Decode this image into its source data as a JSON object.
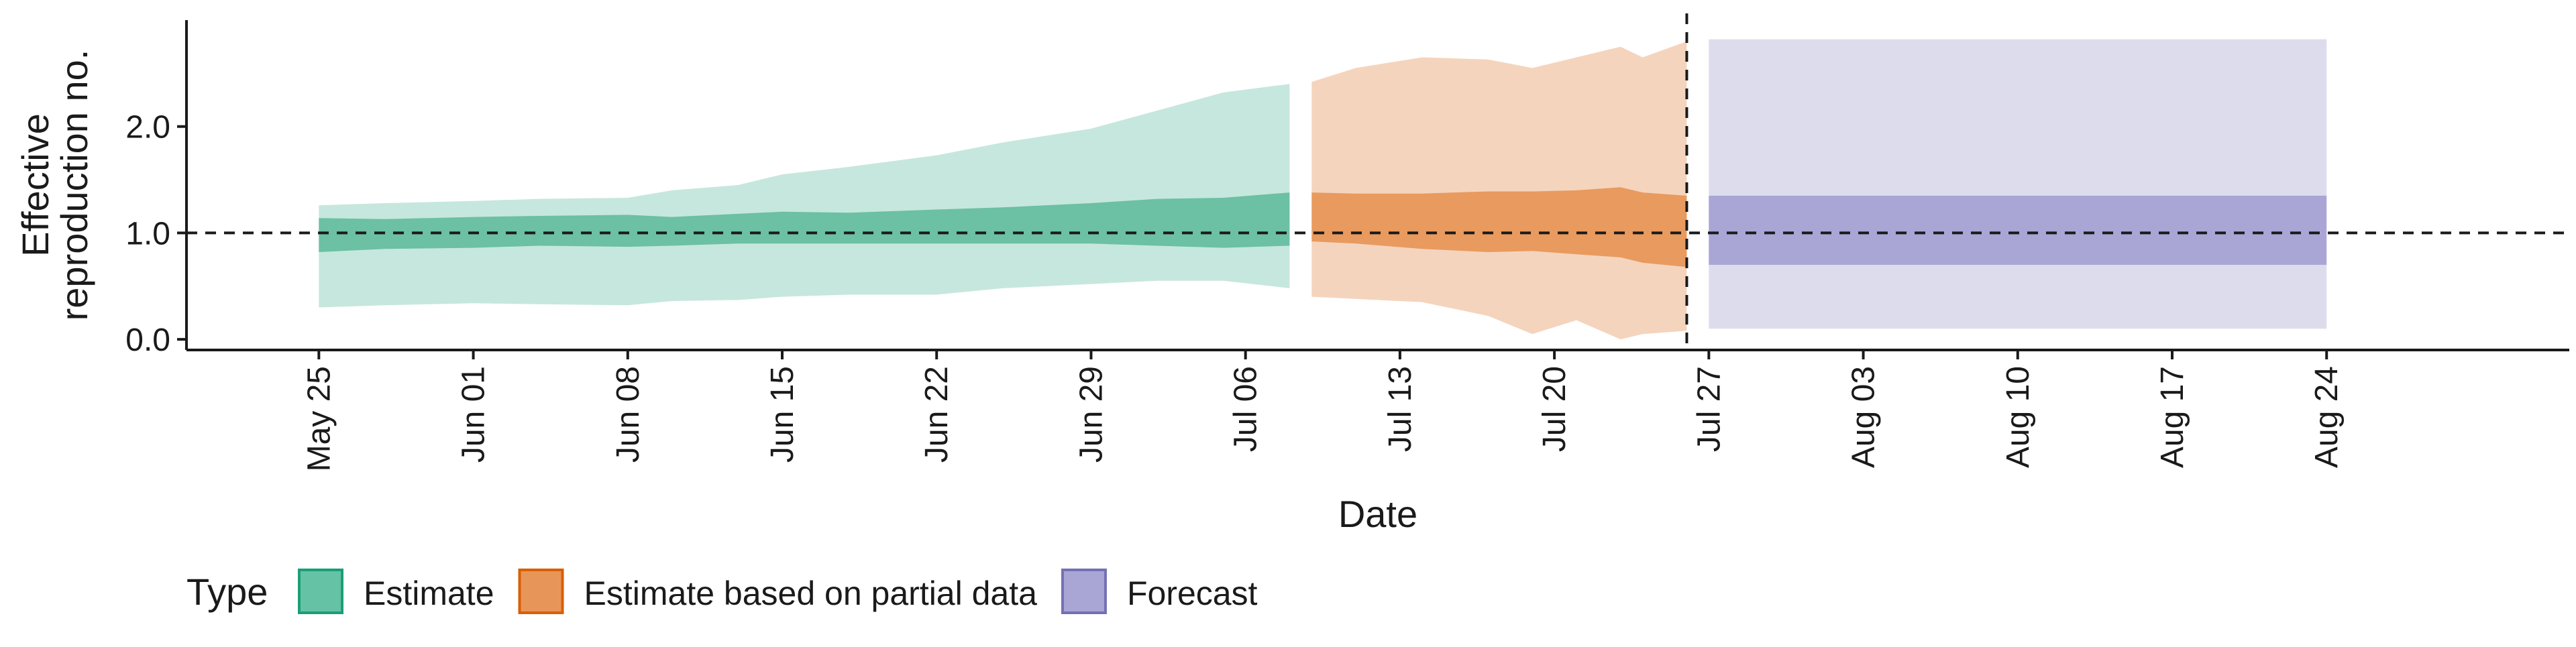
{
  "chart_data": {
    "type": "area",
    "xlabel": "Date",
    "ylabel_lines": [
      "Effective",
      "reproduction no."
    ],
    "ylim": [
      -0.1,
      3.0
    ],
    "x_range": [
      "2020-05-19",
      "2020-09-04"
    ],
    "yticks": [
      {
        "value": 0.0,
        "label": "0.0"
      },
      {
        "value": 1.0,
        "label": "1.0"
      },
      {
        "value": 2.0,
        "label": "2.0"
      }
    ],
    "xticks": [
      {
        "date": "2020-05-25",
        "label": "May 25"
      },
      {
        "date": "2020-06-01",
        "label": "Jun 01"
      },
      {
        "date": "2020-06-08",
        "label": "Jun 08"
      },
      {
        "date": "2020-06-15",
        "label": "Jun 15"
      },
      {
        "date": "2020-06-22",
        "label": "Jun 22"
      },
      {
        "date": "2020-06-29",
        "label": "Jun 29"
      },
      {
        "date": "2020-07-06",
        "label": "Jul 06"
      },
      {
        "date": "2020-07-13",
        "label": "Jul 13"
      },
      {
        "date": "2020-07-20",
        "label": "Jul 20"
      },
      {
        "date": "2020-07-27",
        "label": "Jul 27"
      },
      {
        "date": "2020-08-03",
        "label": "Aug 03"
      },
      {
        "date": "2020-08-10",
        "label": "Aug 10"
      },
      {
        "date": "2020-08-17",
        "label": "Aug 17"
      },
      {
        "date": "2020-08-24",
        "label": "Aug 24"
      }
    ],
    "reference_lines": {
      "horizontal_y": 1.0,
      "vertical_date": "2020-07-26"
    },
    "legend": {
      "title": "Type",
      "position": "bottom-left",
      "items": [
        {
          "label": "Estimate",
          "color": "#66c2a5",
          "border": "#1b9e77"
        },
        {
          "label": "Estimate based on partial data",
          "color": "#e8955a",
          "border": "#d95f02"
        },
        {
          "label": "Forecast",
          "color": "#a9a6d6",
          "border": "#7570b3"
        }
      ]
    },
    "series": [
      {
        "name": "Estimate",
        "outer_color": "#c6e7dd",
        "inner_color": "#6cc0a3",
        "points": [
          {
            "x": "2020-05-25",
            "lo90": 0.3,
            "lo50": 0.82,
            "hi50": 1.14,
            "hi90": 1.26
          },
          {
            "x": "2020-05-28",
            "lo90": 0.32,
            "lo50": 0.85,
            "hi50": 1.13,
            "hi90": 1.28
          },
          {
            "x": "2020-06-01",
            "lo90": 0.34,
            "lo50": 0.86,
            "hi50": 1.15,
            "hi90": 1.3
          },
          {
            "x": "2020-06-04",
            "lo90": 0.33,
            "lo50": 0.88,
            "hi50": 1.16,
            "hi90": 1.32
          },
          {
            "x": "2020-06-08",
            "lo90": 0.32,
            "lo50": 0.87,
            "hi50": 1.17,
            "hi90": 1.33
          },
          {
            "x": "2020-06-10",
            "lo90": 0.36,
            "lo50": 0.88,
            "hi50": 1.15,
            "hi90": 1.4
          },
          {
            "x": "2020-06-13",
            "lo90": 0.37,
            "lo50": 0.9,
            "hi50": 1.18,
            "hi90": 1.45
          },
          {
            "x": "2020-06-15",
            "lo90": 0.4,
            "lo50": 0.9,
            "hi50": 1.2,
            "hi90": 1.55
          },
          {
            "x": "2020-06-18",
            "lo90": 0.42,
            "lo50": 0.9,
            "hi50": 1.19,
            "hi90": 1.62
          },
          {
            "x": "2020-06-22",
            "lo90": 0.42,
            "lo50": 0.9,
            "hi50": 1.22,
            "hi90": 1.73
          },
          {
            "x": "2020-06-25",
            "lo90": 0.48,
            "lo50": 0.9,
            "hi50": 1.24,
            "hi90": 1.85
          },
          {
            "x": "2020-06-29",
            "lo90": 0.52,
            "lo50": 0.9,
            "hi50": 1.28,
            "hi90": 1.98
          },
          {
            "x": "2020-07-02",
            "lo90": 0.55,
            "lo50": 0.88,
            "hi50": 1.32,
            "hi90": 2.15
          },
          {
            "x": "2020-07-05",
            "lo90": 0.55,
            "lo50": 0.86,
            "hi50": 1.33,
            "hi90": 2.32
          },
          {
            "x": "2020-07-08",
            "lo90": 0.48,
            "lo50": 0.88,
            "hi50": 1.38,
            "hi90": 2.4
          }
        ]
      },
      {
        "name": "Estimate based on partial data",
        "outer_color": "#f5d4bd",
        "inner_color": "#e99a5e",
        "points": [
          {
            "x": "2020-07-09",
            "lo90": 0.4,
            "lo50": 0.92,
            "hi50": 1.38,
            "hi90": 2.42
          },
          {
            "x": "2020-07-11",
            "lo90": 0.38,
            "lo50": 0.9,
            "hi50": 1.37,
            "hi90": 2.55
          },
          {
            "x": "2020-07-14",
            "lo90": 0.35,
            "lo50": 0.85,
            "hi50": 1.37,
            "hi90": 2.65
          },
          {
            "x": "2020-07-17",
            "lo90": 0.22,
            "lo50": 0.82,
            "hi50": 1.39,
            "hi90": 2.63
          },
          {
            "x": "2020-07-19",
            "lo90": 0.05,
            "lo50": 0.83,
            "hi50": 1.39,
            "hi90": 2.55
          },
          {
            "x": "2020-07-21",
            "lo90": 0.18,
            "lo50": 0.8,
            "hi50": 1.4,
            "hi90": 2.65
          },
          {
            "x": "2020-07-23",
            "lo90": 0.0,
            "lo50": 0.77,
            "hi50": 1.43,
            "hi90": 2.75
          },
          {
            "x": "2020-07-24",
            "lo90": 0.05,
            "lo50": 0.72,
            "hi50": 1.38,
            "hi90": 2.65
          },
          {
            "x": "2020-07-26",
            "lo90": 0.08,
            "lo50": 0.68,
            "hi50": 1.35,
            "hi90": 2.8
          }
        ]
      },
      {
        "name": "Forecast",
        "outer_color": "#dcdcec",
        "inner_color": "#a9a6d6",
        "points": [
          {
            "x": "2020-07-27",
            "lo90": 0.1,
            "lo50": 0.7,
            "hi50": 1.35,
            "hi90": 2.82
          },
          {
            "x": "2020-08-24",
            "lo90": 0.1,
            "lo50": 0.7,
            "hi50": 1.35,
            "hi90": 2.82
          }
        ]
      }
    ]
  }
}
